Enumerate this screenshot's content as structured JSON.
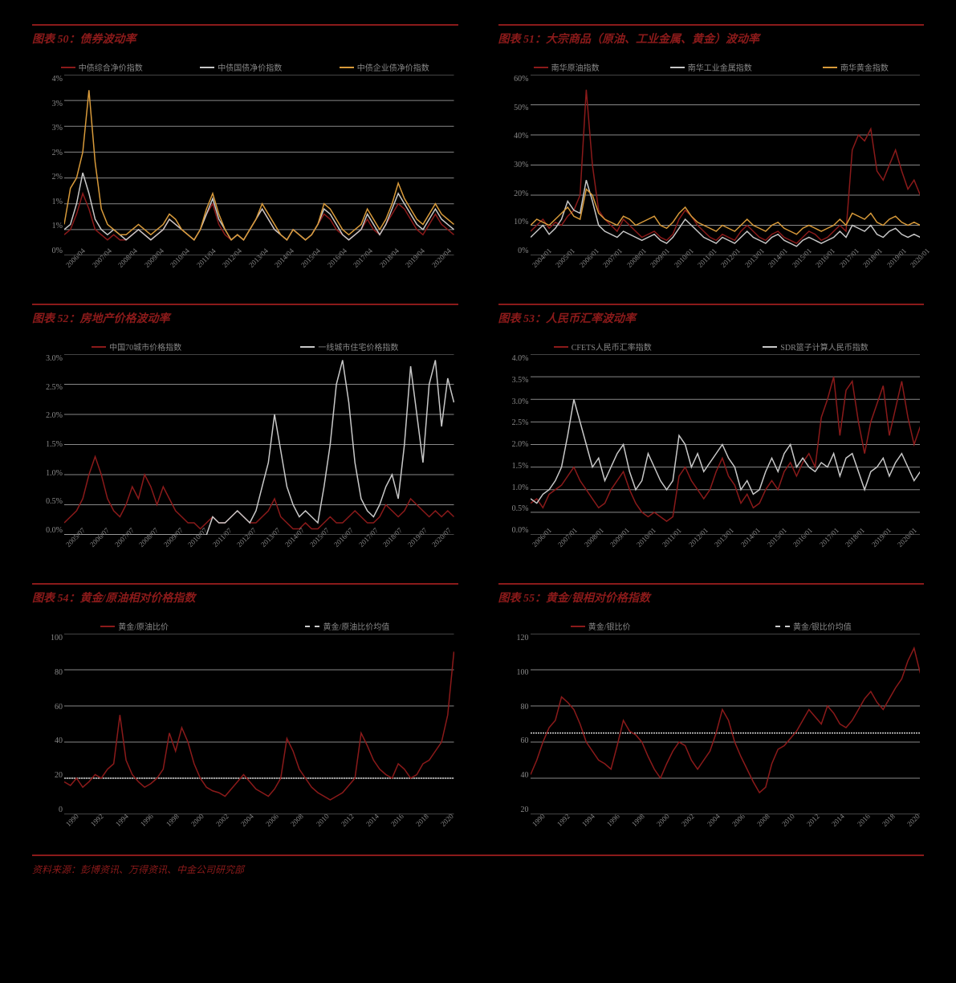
{
  "source": "资料来源：彭博资讯、万得资讯、中金公司研究部",
  "colors": {
    "red": "#8b1a1a",
    "grey": "#c8c8c8",
    "orange": "#d89a3a",
    "grid": "#888888",
    "bg": "#000000"
  },
  "charts": [
    {
      "id": "c50",
      "title": "图表 50：债券波动率",
      "ylim": [
        0,
        3.5
      ],
      "yticks": [
        0,
        0.5,
        1,
        1.5,
        2,
        2.5,
        3,
        3.5
      ],
      "ylabels": [
        "0%",
        "1%",
        "1%",
        "2%",
        "2%",
        "3%",
        "3%",
        "4%"
      ],
      "xlabels": [
        "2006/04",
        "2007/04",
        "2008/04",
        "2009/04",
        "2010/04",
        "2011/04",
        "2012/04",
        "2013/04",
        "2014/04",
        "2015/04",
        "2016/04",
        "2017/04",
        "2018/04",
        "2019/04",
        "2020/04"
      ],
      "legend": [
        {
          "label": "中债综合净价指数",
          "color": "#8b1a1a"
        },
        {
          "label": "中债国债净价指数",
          "color": "#c8c8c8"
        },
        {
          "label": "中债企业债净价指数",
          "color": "#d89a3a"
        }
      ],
      "series": [
        {
          "color": "#8b1a1a",
          "data": [
            0.4,
            0.5,
            0.8,
            1.2,
            0.9,
            0.5,
            0.4,
            0.3,
            0.4,
            0.3,
            0.3,
            0.4,
            0.5,
            0.4,
            0.3,
            0.4,
            0.5,
            0.7,
            0.6,
            0.5,
            0.4,
            0.3,
            0.5,
            0.8,
            1.0,
            0.6,
            0.4,
            0.3,
            0.4,
            0.3,
            0.5,
            0.7,
            0.9,
            0.7,
            0.5,
            0.4,
            0.3,
            0.5,
            0.4,
            0.3,
            0.4,
            0.6,
            0.8,
            0.7,
            0.5,
            0.4,
            0.3,
            0.4,
            0.5,
            0.7,
            0.5,
            0.4,
            0.6,
            0.8,
            1.0,
            0.9,
            0.7,
            0.5,
            0.4,
            0.6,
            0.8,
            0.6,
            0.5,
            0.4
          ]
        },
        {
          "color": "#c8c8c8",
          "data": [
            0.5,
            0.6,
            1.0,
            1.6,
            1.2,
            0.7,
            0.5,
            0.4,
            0.5,
            0.4,
            0.3,
            0.4,
            0.5,
            0.4,
            0.3,
            0.4,
            0.5,
            0.7,
            0.6,
            0.5,
            0.4,
            0.3,
            0.5,
            0.8,
            1.1,
            0.7,
            0.5,
            0.3,
            0.4,
            0.3,
            0.5,
            0.7,
            0.9,
            0.7,
            0.5,
            0.4,
            0.3,
            0.5,
            0.4,
            0.3,
            0.4,
            0.6,
            0.9,
            0.8,
            0.6,
            0.4,
            0.3,
            0.4,
            0.5,
            0.8,
            0.6,
            0.4,
            0.6,
            0.9,
            1.2,
            1.0,
            0.8,
            0.6,
            0.5,
            0.7,
            0.9,
            0.7,
            0.6,
            0.5
          ]
        },
        {
          "color": "#d89a3a",
          "data": [
            0.6,
            1.3,
            1.5,
            2.0,
            3.2,
            1.8,
            0.9,
            0.6,
            0.5,
            0.4,
            0.4,
            0.5,
            0.6,
            0.5,
            0.4,
            0.5,
            0.6,
            0.8,
            0.7,
            0.5,
            0.4,
            0.3,
            0.5,
            0.9,
            1.2,
            0.8,
            0.5,
            0.3,
            0.4,
            0.3,
            0.5,
            0.7,
            1.0,
            0.8,
            0.6,
            0.4,
            0.3,
            0.5,
            0.4,
            0.3,
            0.4,
            0.6,
            1.0,
            0.9,
            0.7,
            0.5,
            0.4,
            0.5,
            0.6,
            0.9,
            0.7,
            0.5,
            0.7,
            1.0,
            1.4,
            1.1,
            0.9,
            0.7,
            0.6,
            0.8,
            1.0,
            0.8,
            0.7,
            0.6
          ]
        }
      ]
    },
    {
      "id": "c51",
      "title": "图表 51：大宗商品（原油、工业金属、黄金）波动率",
      "ylim": [
        0,
        60
      ],
      "yticks": [
        0,
        10,
        20,
        30,
        40,
        50,
        60
      ],
      "ylabels": [
        "0%",
        "10%",
        "20%",
        "30%",
        "40%",
        "50%",
        "60%"
      ],
      "xlabels": [
        "2004/01",
        "2005/01",
        "2006/01",
        "2007/01",
        "2008/01",
        "2009/01",
        "2010/01",
        "2011/01",
        "2012/01",
        "2013/01",
        "2014/01",
        "2015/01",
        "2016/01",
        "2017/01",
        "2018/01",
        "2019/01",
        "2020/01"
      ],
      "legend": [
        {
          "label": "南华原油指数",
          "color": "#8b1a1a"
        },
        {
          "label": "南华工业金属指数",
          "color": "#c8c8c8"
        },
        {
          "label": "南华黄金指数",
          "color": "#d89a3a"
        }
      ],
      "series": [
        {
          "color": "#8b1a1a",
          "data": [
            8,
            10,
            12,
            9,
            11,
            10,
            13,
            15,
            20,
            55,
            30,
            15,
            12,
            10,
            8,
            12,
            10,
            8,
            6,
            7,
            8,
            6,
            5,
            7,
            12,
            15,
            13,
            10,
            8,
            6,
            5,
            7,
            6,
            5,
            8,
            10,
            8,
            6,
            5,
            7,
            8,
            6,
            5,
            4,
            6,
            8,
            7,
            5,
            6,
            8,
            10,
            8,
            35,
            40,
            38,
            42,
            28,
            25,
            30,
            35,
            28,
            22,
            25,
            20
          ]
        },
        {
          "color": "#c8c8c8",
          "data": [
            6,
            8,
            10,
            7,
            9,
            12,
            18,
            15,
            14,
            25,
            18,
            10,
            8,
            7,
            6,
            8,
            7,
            6,
            5,
            6,
            7,
            5,
            4,
            6,
            9,
            12,
            10,
            8,
            6,
            5,
            4,
            6,
            5,
            4,
            6,
            8,
            6,
            5,
            4,
            6,
            7,
            5,
            4,
            3,
            5,
            6,
            5,
            4,
            5,
            6,
            8,
            6,
            10,
            9,
            8,
            10,
            7,
            6,
            8,
            9,
            7,
            6,
            7,
            6
          ]
        },
        {
          "color": "#d89a3a",
          "data": [
            10,
            12,
            11,
            10,
            12,
            14,
            16,
            13,
            12,
            22,
            20,
            14,
            12,
            11,
            10,
            13,
            12,
            10,
            11,
            12,
            13,
            10,
            9,
            11,
            14,
            16,
            13,
            11,
            10,
            9,
            8,
            10,
            9,
            8,
            10,
            12,
            10,
            9,
            8,
            10,
            11,
            9,
            8,
            7,
            9,
            10,
            9,
            8,
            9,
            10,
            12,
            10,
            14,
            13,
            12,
            14,
            11,
            10,
            12,
            13,
            11,
            10,
            11,
            10
          ]
        }
      ]
    },
    {
      "id": "c52",
      "title": "图表 52：房地产价格波动率",
      "ylim": [
        0,
        3
      ],
      "yticks": [
        0,
        0.5,
        1,
        1.5,
        2,
        2.5,
        3
      ],
      "ylabels": [
        "0.0%",
        "0.5%",
        "1.0%",
        "1.5%",
        "2.0%",
        "2.5%",
        "3.0%"
      ],
      "xlabels": [
        "2005/07",
        "2006/07",
        "2007/07",
        "2008/07",
        "2009/07",
        "2010/07",
        "2011/07",
        "2012/07",
        "2013/07",
        "2014/07",
        "2015/07",
        "2016/07",
        "2017/07",
        "2018/07",
        "2019/07",
        "2020/07"
      ],
      "legend": [
        {
          "label": "中国70城市价格指数",
          "color": "#8b1a1a"
        },
        {
          "label": "一线城市住宅价格指数",
          "color": "#c8c8c8"
        }
      ],
      "series": [
        {
          "color": "#8b1a1a",
          "data": [
            0.2,
            0.3,
            0.4,
            0.6,
            1.0,
            1.3,
            1.0,
            0.6,
            0.4,
            0.3,
            0.5,
            0.8,
            0.6,
            1.0,
            0.8,
            0.5,
            0.8,
            0.6,
            0.4,
            0.3,
            0.2,
            0.2,
            0.1,
            0.2,
            0.3,
            0.2,
            0.2,
            0.3,
            0.4,
            0.3,
            0.2,
            0.2,
            0.3,
            0.4,
            0.6,
            0.3,
            0.2,
            0.1,
            0.1,
            0.2,
            0.1,
            0.1,
            0.2,
            0.3,
            0.2,
            0.2,
            0.3,
            0.4,
            0.3,
            0.2,
            0.2,
            0.3,
            0.5,
            0.4,
            0.3,
            0.4,
            0.6,
            0.5,
            0.4,
            0.3,
            0.4,
            0.3,
            0.4,
            0.3
          ]
        },
        {
          "color": "#c8c8c8",
          "data": [
            0,
            0,
            0,
            0,
            0,
            0,
            0,
            0,
            0,
            0,
            0,
            0,
            0,
            0,
            0,
            0,
            0,
            0,
            0,
            0,
            0,
            0,
            0,
            0,
            0.3,
            0.2,
            0.2,
            0.3,
            0.4,
            0.3,
            0.2,
            0.4,
            0.8,
            1.2,
            2.0,
            1.4,
            0.8,
            0.5,
            0.3,
            0.4,
            0.3,
            0.2,
            0.8,
            1.5,
            2.5,
            2.9,
            2.2,
            1.2,
            0.6,
            0.4,
            0.3,
            0.5,
            0.8,
            1.0,
            0.6,
            1.5,
            2.8,
            2.0,
            1.2,
            2.5,
            2.9,
            1.8,
            2.6,
            2.2
          ]
        }
      ]
    },
    {
      "id": "c53",
      "title": "图表 53：人民币汇率波动率",
      "ylim": [
        0,
        4
      ],
      "yticks": [
        0,
        0.5,
        1,
        1.5,
        2,
        2.5,
        3,
        3.5,
        4
      ],
      "ylabels": [
        "0.0%",
        "0.5%",
        "1.0%",
        "1.5%",
        "2.0%",
        "2.5%",
        "3.0%",
        "3.5%",
        "4.0%"
      ],
      "xlabels": [
        "2006/01",
        "2007/01",
        "2008/01",
        "2009/01",
        "2010/01",
        "2011/01",
        "2012/01",
        "2013/01",
        "2014/01",
        "2015/01",
        "2016/01",
        "2017/01",
        "2018/01",
        "2019/01",
        "2020/01"
      ],
      "legend": [
        {
          "label": "CFETS人民币汇率指数",
          "color": "#8b1a1a"
        },
        {
          "label": "SDR篮子计算人民币指数",
          "color": "#c8c8c8"
        }
      ],
      "series": [
        {
          "color": "#8b1a1a",
          "data": [
            0.7,
            0.8,
            0.6,
            0.9,
            1.0,
            1.1,
            1.3,
            1.5,
            1.2,
            1.0,
            0.8,
            0.6,
            0.7,
            1.0,
            1.2,
            1.4,
            1.0,
            0.7,
            0.5,
            0.4,
            0.5,
            0.4,
            0.3,
            0.4,
            1.3,
            1.5,
            1.2,
            1.0,
            0.8,
            1.0,
            1.4,
            1.7,
            1.3,
            1.1,
            0.7,
            0.9,
            0.6,
            0.7,
            1.0,
            1.2,
            1.0,
            1.4,
            1.6,
            1.3,
            1.6,
            1.8,
            1.5,
            2.6,
            3.0,
            3.5,
            2.2,
            3.2,
            3.4,
            2.5,
            1.8,
            2.5,
            2.9,
            3.3,
            2.2,
            2.8,
            3.4,
            2.6,
            2.0,
            2.4
          ]
        },
        {
          "color": "#c8c8c8",
          "data": [
            0.8,
            0.7,
            0.9,
            1.0,
            1.2,
            1.5,
            2.2,
            3.0,
            2.5,
            2.0,
            1.5,
            1.7,
            1.2,
            1.5,
            1.8,
            2.0,
            1.4,
            1.0,
            1.2,
            1.8,
            1.5,
            1.2,
            1.0,
            1.2,
            2.2,
            2.0,
            1.5,
            1.8,
            1.4,
            1.6,
            1.8,
            2.0,
            1.7,
            1.5,
            1.0,
            1.2,
            0.9,
            1.0,
            1.4,
            1.7,
            1.4,
            1.8,
            2.0,
            1.5,
            1.7,
            1.5,
            1.4,
            1.6,
            1.5,
            1.8,
            1.3,
            1.7,
            1.8,
            1.4,
            1.0,
            1.4,
            1.5,
            1.7,
            1.3,
            1.6,
            1.8,
            1.5,
            1.2,
            1.4
          ]
        }
      ]
    },
    {
      "id": "c54",
      "title": "图表 54：黄金/原油相对价格指数",
      "ylim": [
        0,
        100
      ],
      "yticks": [
        0,
        20,
        40,
        60,
        80,
        100
      ],
      "ylabels": [
        "0",
        "20",
        "40",
        "60",
        "80",
        "100"
      ],
      "xlabels": [
        "1990",
        "1992",
        "1994",
        "1996",
        "1998",
        "2000",
        "2002",
        "2004",
        "2006",
        "2008",
        "2010",
        "2012",
        "2014",
        "2016",
        "2018",
        "2020"
      ],
      "legend": [
        {
          "label": "黄金/原油比价",
          "color": "#8b1a1a"
        },
        {
          "label": "黄金/原油比价均值",
          "dash": true
        }
      ],
      "series": [
        {
          "color": "#8b1a1a",
          "data": [
            18,
            16,
            20,
            15,
            18,
            22,
            20,
            25,
            28,
            55,
            30,
            22,
            18,
            15,
            17,
            20,
            25,
            45,
            35,
            48,
            40,
            28,
            20,
            15,
            13,
            12,
            10,
            14,
            18,
            22,
            18,
            14,
            12,
            10,
            14,
            20,
            42,
            35,
            25,
            20,
            15,
            12,
            10,
            8,
            10,
            12,
            16,
            20,
            45,
            38,
            30,
            25,
            22,
            20,
            28,
            25,
            20,
            22,
            28,
            30,
            35,
            40,
            55,
            90
          ]
        }
      ],
      "hline": {
        "y": 20,
        "color": "#cccccc"
      }
    },
    {
      "id": "c55",
      "title": "图表 55：黄金/银相对价格指数",
      "ylim": [
        20,
        120
      ],
      "yticks": [
        20,
        40,
        60,
        80,
        100,
        120
      ],
      "ylabels": [
        "20",
        "40",
        "60",
        "80",
        "100",
        "120"
      ],
      "xlabels": [
        "1990",
        "1992",
        "1994",
        "1996",
        "1998",
        "2000",
        "2002",
        "2004",
        "2006",
        "2008",
        "2010",
        "2012",
        "2014",
        "2016",
        "2018",
        "2020"
      ],
      "legend": [
        {
          "label": "黄金/银比价",
          "color": "#8b1a1a"
        },
        {
          "label": "黄金/银比价均值",
          "dash": true
        }
      ],
      "series": [
        {
          "color": "#8b1a1a",
          "data": [
            42,
            50,
            60,
            68,
            72,
            85,
            82,
            78,
            70,
            60,
            55,
            50,
            48,
            45,
            58,
            72,
            66,
            64,
            60,
            52,
            45,
            40,
            48,
            55,
            60,
            58,
            50,
            45,
            50,
            55,
            65,
            78,
            72,
            60,
            52,
            45,
            38,
            32,
            35,
            48,
            56,
            58,
            62,
            66,
            72,
            78,
            74,
            70,
            80,
            76,
            70,
            68,
            72,
            78,
            84,
            88,
            82,
            78,
            84,
            90,
            95,
            105,
            112,
            98
          ]
        }
      ],
      "hline": {
        "y": 65,
        "color": "#cccccc"
      }
    }
  ]
}
